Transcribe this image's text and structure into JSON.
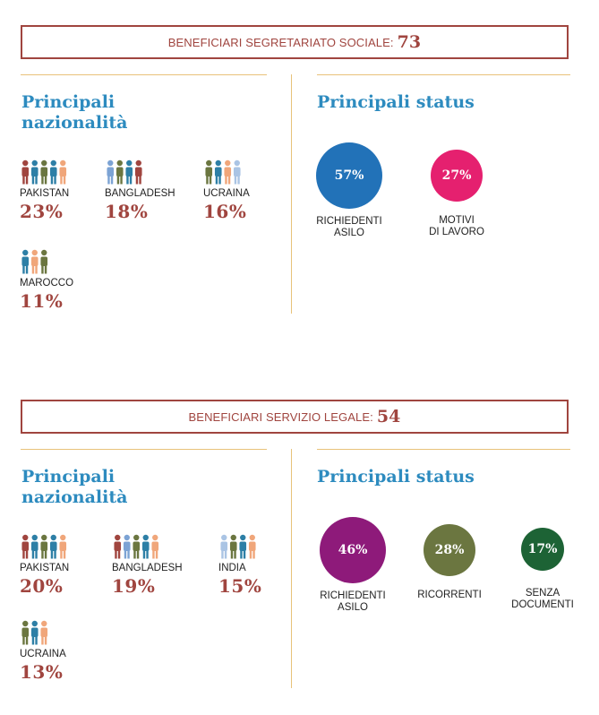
{
  "colors": {
    "accent_red": "#a0453f",
    "heading_blue": "#2d8bbf",
    "divider": "#e8c27a",
    "people": [
      "#a0453f",
      "#7ca3d4",
      "#6b7640",
      "#2d7fa6",
      "#f0a67a",
      "#aac4e4"
    ]
  },
  "sections": [
    {
      "banner": {
        "label": "BENEFICIARI SEGRETARIATO SOCIALE:",
        "value": "73"
      },
      "nationalities_title": "Principali nazionalità",
      "status_title": "Principali status",
      "nationalities": [
        {
          "name": "PAKISTAN",
          "pct": "23%",
          "value": 23,
          "icons": [
            "#a0453f",
            "#2d7fa6",
            "#6b7640",
            "#2d7fa6",
            "#f0a67a"
          ]
        },
        {
          "name": "BANGLADESH",
          "pct": "18%",
          "value": 18,
          "icons": [
            "#7ca3d4",
            "#6b7640",
            "#2d7fa6",
            "#a0453f"
          ]
        },
        {
          "name": "UCRAINA",
          "pct": "16%",
          "value": 16,
          "icons": [
            "#6b7640",
            "#2d7fa6",
            "#f0a67a",
            "#aac4e4"
          ]
        },
        {
          "name": "MAROCCO",
          "pct": "11%",
          "value": 11,
          "icons": [
            "#2d7fa6",
            "#f0a67a",
            "#6b7640"
          ]
        }
      ],
      "statuses": [
        {
          "label": "RICHIEDENTI\nASILO",
          "pct": "57%",
          "value": 57,
          "color": "#2272b8"
        },
        {
          "label": "MOTIVI\nDI LAVORO",
          "pct": "27%",
          "value": 27,
          "color": "#e5206f"
        }
      ]
    },
    {
      "banner": {
        "label": "BENEFICIARI SERVIZIO LEGALE:",
        "value": "54"
      },
      "nationalities_title": "Principali nazionalità",
      "status_title": "Principali status",
      "nationalities": [
        {
          "name": "PAKISTAN",
          "pct": "20%",
          "value": 20,
          "icons": [
            "#a0453f",
            "#2d7fa6",
            "#6b7640",
            "#2d7fa6",
            "#f0a67a"
          ]
        },
        {
          "name": "BANGLADESH",
          "pct": "19%",
          "value": 19,
          "icons": [
            "#a0453f",
            "#7ca3d4",
            "#6b7640",
            "#2d7fa6",
            "#f0a67a"
          ]
        },
        {
          "name": "INDIA",
          "pct": "15%",
          "value": 15,
          "icons": [
            "#aac4e4",
            "#6b7640",
            "#2d7fa6",
            "#f0a67a"
          ]
        },
        {
          "name": "UCRAINA",
          "pct": "13%",
          "value": 13,
          "icons": [
            "#6b7640",
            "#2d7fa6",
            "#f0a67a"
          ]
        }
      ],
      "statuses": [
        {
          "label": "RICHIEDENTI\nASILO",
          "pct": "46%",
          "value": 46,
          "color": "#8e1a7a"
        },
        {
          "label": "RICORRENTI",
          "pct": "28%",
          "value": 28,
          "color": "#6b7640"
        },
        {
          "label": "SENZA\nDOCUMENTI",
          "pct": "17%",
          "value": 17,
          "color": "#1d6335"
        }
      ]
    }
  ],
  "chart_data": [
    {
      "type": "table",
      "title": "BENEFICIARI SEGRETARIATO SOCIALE: 73",
      "nationalities": {
        "categories": [
          "PAKISTAN",
          "BANGLADESH",
          "UCRAINA",
          "MAROCCO"
        ],
        "values": [
          23,
          18,
          16,
          11
        ]
      },
      "status": {
        "categories": [
          "RICHIEDENTI ASILO",
          "MOTIVI DI LAVORO"
        ],
        "values": [
          57,
          27
        ]
      }
    },
    {
      "type": "table",
      "title": "BENEFICIARI SERVIZIO LEGALE: 54",
      "nationalities": {
        "categories": [
          "PAKISTAN",
          "BANGLADESH",
          "INDIA",
          "UCRAINA"
        ],
        "values": [
          20,
          19,
          15,
          13
        ]
      },
      "status": {
        "categories": [
          "RICHIEDENTI ASILO",
          "RICORRENTI",
          "SENZA DOCUMENTI"
        ],
        "values": [
          46,
          28,
          17
        ]
      }
    }
  ]
}
